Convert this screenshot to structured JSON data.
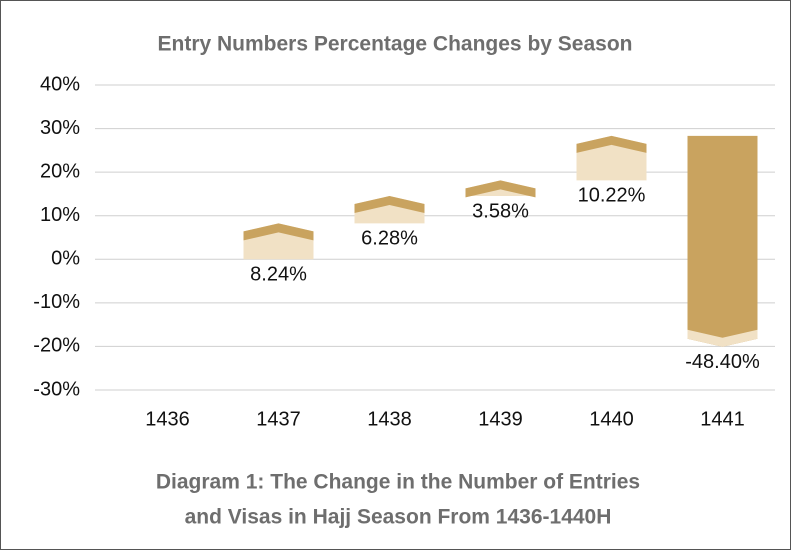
{
  "chart_data": {
    "type": "waterfall",
    "title": "Entry Numbers Percentage Changes by Season",
    "caption": [
      "Diagram 1: The Change in the Number of Entries",
      "and Visas in Hajj Season From 1436-1440H"
    ],
    "categories": [
      "1436",
      "1437",
      "1438",
      "1439",
      "1440",
      "1441"
    ],
    "values": [
      null,
      8.24,
      6.28,
      3.58,
      10.22,
      -48.4
    ],
    "value_labels": [
      null,
      "8.24%",
      "6.28%",
      "3.58%",
      "10.22%",
      "-48.40%"
    ],
    "color": "#c9a35f",
    "light_color": "#f1e1c5",
    "ylim": [
      -30,
      40
    ],
    "yticks": [
      {
        "value": -30,
        "label": "-30%"
      },
      {
        "value": -20,
        "label": "-20%"
      },
      {
        "value": -10,
        "label": "-10%"
      },
      {
        "value": 0,
        "label": "0%"
      },
      {
        "value": 10,
        "label": "10%"
      },
      {
        "value": 20,
        "label": "20%"
      },
      {
        "value": 30,
        "label": "30%"
      },
      {
        "value": 40,
        "label": "40%"
      }
    ],
    "grid": true
  }
}
